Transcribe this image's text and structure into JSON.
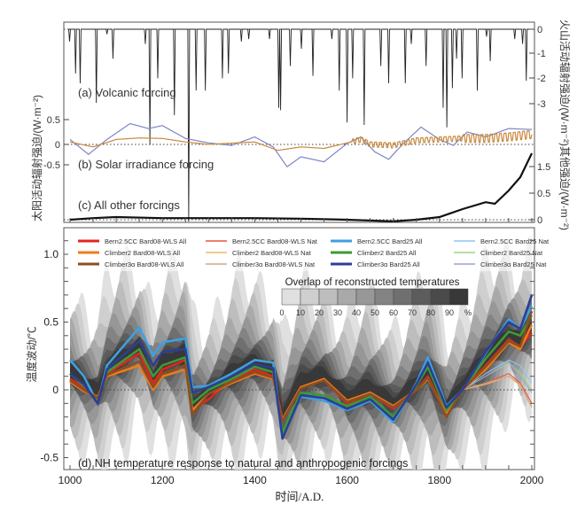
{
  "chart_data": [
    {
      "type": "line",
      "panel": "top",
      "labels": {
        "a": "(a) Volcanic forcing",
        "b": "(b) Solar irradiance forcing",
        "c": "(c) All other forcings"
      },
      "left_ylabel": "太阳活动辐射强迫/(W·m⁻²)",
      "right_ylabel_volcanic": "火山活动辐射强迫/(W·m⁻²)",
      "right_ylabel_other": "其他强迫/(W·m⁻²)",
      "solar_ticks": [
        "0.5",
        "0",
        "-0.5"
      ],
      "volcanic_ticks": [
        "0",
        "-1",
        "-2",
        "-3"
      ],
      "other_ticks": [
        "1.5",
        "0.5",
        "0"
      ],
      "xlim": [
        1000,
        2000
      ],
      "volcanic": [
        [
          999,
          -0.5
        ],
        [
          1012,
          -1.8
        ],
        [
          1022,
          -2.2
        ],
        [
          1057,
          -3.0
        ],
        [
          1080,
          -0.2
        ],
        [
          1093,
          -1.2
        ],
        [
          1163,
          -0.6
        ],
        [
          1173,
          -4.7
        ],
        [
          1190,
          -2.0
        ],
        [
          1226,
          -3.5
        ],
        [
          1257,
          -12
        ],
        [
          1273,
          -2.5
        ],
        [
          1293,
          -2.5
        ],
        [
          1330,
          -2.0
        ],
        [
          1343,
          -1.8
        ],
        [
          1371,
          -0.5
        ],
        [
          1387,
          -0.4
        ],
        [
          1432,
          -0.4
        ],
        [
          1452,
          -3.2
        ],
        [
          1456,
          -3.3
        ],
        [
          1477,
          -1.5
        ],
        [
          1501,
          -0.8
        ],
        [
          1526,
          -1.9
        ],
        [
          1567,
          -0.4
        ],
        [
          1583,
          -2.5
        ],
        [
          1600,
          -3.8
        ],
        [
          1612,
          -2.0
        ],
        [
          1637,
          -3.9
        ],
        [
          1673,
          -1.5
        ],
        [
          1690,
          -2.2
        ],
        [
          1726,
          -2.2
        ],
        [
          1739,
          -0.6
        ],
        [
          1771,
          -1.5
        ],
        [
          1808,
          -3.2
        ],
        [
          1816,
          -4.0
        ],
        [
          1828,
          -2.4
        ],
        [
          1837,
          -1.2
        ],
        [
          1849,
          -2.0
        ],
        [
          1882,
          -2.5
        ],
        [
          1902,
          -0.3
        ],
        [
          1910,
          -1.3
        ],
        [
          1963,
          -0.4
        ],
        [
          1980,
          -0.6
        ],
        [
          1988,
          -2.1
        ]
      ],
      "solar_series": [
        {
          "color": "#7b86c8",
          "points": [
            [
              1000,
              0.1
            ],
            [
              1040,
              -0.2
            ],
            [
              1080,
              0.1
            ],
            [
              1130,
              0.42
            ],
            [
              1170,
              0.32
            ],
            [
              1200,
              0.38
            ],
            [
              1250,
              0.12
            ],
            [
              1300,
              0.03
            ],
            [
              1350,
              -0.02
            ],
            [
              1400,
              0.15
            ],
            [
              1440,
              -0.05
            ],
            [
              1470,
              -0.45
            ],
            [
              1500,
              -0.25
            ],
            [
              1550,
              -0.35
            ],
            [
              1600,
              0.02
            ],
            [
              1630,
              0.15
            ],
            [
              1660,
              -0.15
            ],
            [
              1690,
              -0.3
            ],
            [
              1720,
              0.0
            ],
            [
              1760,
              0.35
            ],
            [
              1800,
              0.1
            ],
            [
              1830,
              -0.02
            ],
            [
              1860,
              0.25
            ],
            [
              1900,
              0.15
            ],
            [
              1950,
              0.32
            ],
            [
              2000,
              0.3
            ]
          ]
        },
        {
          "color": "#c8893c",
          "points": [
            [
              1000,
              0.05
            ],
            [
              1050,
              -0.05
            ],
            [
              1100,
              0.1
            ],
            [
              1150,
              0.13
            ],
            [
              1200,
              0.12
            ],
            [
              1250,
              0.05
            ],
            [
              1300,
              0.0
            ],
            [
              1400,
              0.05
            ],
            [
              1450,
              -0.12
            ],
            [
              1500,
              -0.05
            ],
            [
              1550,
              -0.08
            ],
            [
              1600,
              0.03
            ],
            [
              1630,
              0.1
            ],
            [
              1650,
              0.0
            ],
            [
              1700,
              -0.02
            ],
            [
              1750,
              0.08
            ],
            [
              1800,
              0.1
            ],
            [
              1850,
              0.12
            ],
            [
              1900,
              0.12
            ],
            [
              1950,
              0.15
            ],
            [
              2000,
              0.2
            ]
          ]
        }
      ],
      "other_forcings": [
        [
          1000,
          0
        ],
        [
          1050,
          0.03
        ],
        [
          1100,
          0.05
        ],
        [
          1200,
          0.03
        ],
        [
          1300,
          0.03
        ],
        [
          1400,
          0.03
        ],
        [
          1500,
          0.02
        ],
        [
          1600,
          0.0
        ],
        [
          1700,
          -0.03
        ],
        [
          1750,
          0.0
        ],
        [
          1800,
          0.05
        ],
        [
          1850,
          0.2
        ],
        [
          1900,
          0.33
        ],
        [
          1920,
          0.3
        ],
        [
          1950,
          0.55
        ],
        [
          1975,
          0.8
        ],
        [
          2000,
          1.25
        ]
      ]
    },
    {
      "type": "line",
      "panel": "bottom",
      "title": "(d) NH temperature response to natural and anthropogenic forcings",
      "xlabel": "时间/A.D.",
      "ylabel": "温度波动/℃",
      "xlim": [
        1000,
        2000
      ],
      "ylim": [
        -0.55,
        1.15
      ],
      "xticks": [
        "1000",
        "1200",
        "1400",
        "1600",
        "1800",
        "2000"
      ],
      "yticks": [
        "1.0",
        "0.5",
        "0",
        "-0.5"
      ],
      "overlap_legend": {
        "title": "Overlap of reconstructed temperatures",
        "labels": [
          "0",
          "10",
          "20",
          "30",
          "40",
          "50",
          "60",
          "70",
          "80",
          "90",
          "%"
        ],
        "colors": [
          "#e0e0e0",
          "#cfcfcf",
          "#bdbdbd",
          "#a9a9a9",
          "#979797",
          "#838383",
          "#6f6f6f",
          "#5c5c5c",
          "#4a4a4a",
          "#383838"
        ]
      },
      "x": [
        1000,
        1030,
        1060,
        1080,
        1150,
        1180,
        1200,
        1250,
        1265,
        1300,
        1350,
        1400,
        1440,
        1460,
        1500,
        1550,
        1600,
        1650,
        1700,
        1750,
        1775,
        1815,
        1850,
        1900,
        1950,
        1975,
        2000
      ],
      "series": [
        {
          "name": "Bern2.5CC Bard08-WLS All",
          "color": "#e3251f",
          "width": 2.6,
          "values": [
            0.08,
            0.02,
            -0.06,
            0.12,
            0.27,
            0.05,
            0.15,
            0.22,
            -0.15,
            -0.07,
            0.08,
            0.15,
            0.1,
            -0.22,
            0.02,
            0.07,
            -0.1,
            -0.03,
            -0.14,
            0.0,
            0.1,
            -0.18,
            0.0,
            0.18,
            0.37,
            0.32,
            0.42
          ]
        },
        {
          "name": "Bern2.5CC Bard08-WLS Nat",
          "color": "#e6553f",
          "width": 1.1,
          "values": [
            0.08,
            0.02,
            -0.06,
            0.12,
            0.27,
            0.05,
            0.15,
            0.22,
            -0.15,
            -0.07,
            0.08,
            0.15,
            0.1,
            -0.22,
            0.02,
            0.07,
            -0.1,
            -0.03,
            -0.14,
            0.0,
            0.1,
            -0.18,
            0.0,
            0.05,
            0.12,
            0.05,
            -0.1
          ]
        },
        {
          "name": "Bern2.5CC Bard25 All",
          "color": "#3fa0e0",
          "width": 2.6,
          "values": [
            0.22,
            0.1,
            -0.1,
            0.18,
            0.46,
            0.25,
            0.35,
            0.38,
            0.02,
            0.03,
            0.12,
            0.22,
            0.2,
            -0.35,
            -0.05,
            -0.08,
            -0.15,
            -0.08,
            -0.24,
            0.05,
            0.24,
            -0.12,
            0.0,
            0.27,
            0.52,
            0.45,
            0.62
          ]
        },
        {
          "name": "Bern2.5CC Bard25 Nat",
          "color": "#8cc8ee",
          "width": 1.1,
          "values": [
            0.22,
            0.1,
            -0.1,
            0.18,
            0.46,
            0.25,
            0.35,
            0.38,
            0.02,
            0.03,
            0.12,
            0.22,
            0.2,
            -0.35,
            -0.05,
            -0.08,
            -0.15,
            -0.08,
            -0.24,
            0.05,
            0.24,
            -0.12,
            0.0,
            0.12,
            0.22,
            0.18,
            0.05
          ]
        },
        {
          "name": "Climber2   Bard08-WLS All",
          "color": "#f07a1a",
          "width": 2.6,
          "values": [
            0.06,
            -0.01,
            -0.05,
            0.1,
            0.18,
            0.0,
            0.1,
            0.15,
            -0.15,
            -0.03,
            0.05,
            0.12,
            0.08,
            -0.22,
            0.02,
            0.08,
            -0.08,
            -0.02,
            -0.12,
            0.0,
            0.08,
            -0.18,
            0.0,
            0.15,
            0.35,
            0.3,
            0.48
          ]
        },
        {
          "name": "Climber2   Bard08-WLS Nat",
          "color": "#f7b560",
          "width": 1.1,
          "values": [
            0.06,
            -0.01,
            -0.05,
            0.1,
            0.18,
            0.0,
            0.1,
            0.15,
            -0.15,
            -0.03,
            0.05,
            0.12,
            0.08,
            -0.22,
            0.02,
            0.08,
            -0.08,
            -0.02,
            -0.12,
            0.0,
            0.08,
            -0.18,
            0.0,
            0.04,
            0.1,
            0.03,
            -0.12
          ]
        },
        {
          "name": "Climber2   Bard25 All",
          "color": "#3d9a35",
          "width": 2.6,
          "values": [
            0.12,
            0.03,
            -0.08,
            0.13,
            0.3,
            0.1,
            0.18,
            0.24,
            -0.1,
            0.0,
            0.08,
            0.17,
            0.13,
            -0.32,
            -0.02,
            -0.04,
            -0.12,
            -0.05,
            -0.2,
            0.03,
            0.17,
            -0.15,
            0.0,
            0.23,
            0.43,
            0.4,
            0.55
          ]
        },
        {
          "name": "Climber2   Bard25 Nat",
          "color": "#9fd27d",
          "width": 1.1,
          "values": [
            0.12,
            0.03,
            -0.08,
            0.13,
            0.3,
            0.1,
            0.18,
            0.24,
            -0.1,
            0.0,
            0.08,
            0.17,
            0.13,
            -0.32,
            -0.02,
            -0.04,
            -0.12,
            -0.05,
            -0.2,
            0.03,
            0.17,
            -0.15,
            0.0,
            0.1,
            0.2,
            0.12,
            0.0
          ]
        },
        {
          "name": "Climber3α Bard08-WLS All",
          "color": "#8a4f22",
          "width": 2.6,
          "values": [
            0.07,
            0.0,
            -0.06,
            0.11,
            0.21,
            0.02,
            0.12,
            0.18,
            -0.18,
            -0.03,
            0.06,
            0.13,
            0.09,
            -0.23,
            0.01,
            0.07,
            -0.09,
            -0.03,
            -0.13,
            0.0,
            0.09,
            -0.2,
            0.0,
            0.17,
            0.36,
            0.32,
            0.58
          ]
        },
        {
          "name": "Climber3α Bard08-WLS Nat",
          "color": "#d0a585",
          "width": 1.1,
          "values": [
            0.07,
            0.0,
            -0.06,
            0.11,
            0.21,
            0.02,
            0.12,
            0.18,
            -0.18,
            -0.03,
            0.06,
            0.13,
            0.09,
            -0.23,
            0.01,
            0.07,
            -0.09,
            -0.03,
            -0.13,
            0.0,
            0.09,
            -0.2,
            0.0,
            0.05,
            0.1,
            0.04,
            -0.13
          ]
        },
        {
          "name": "Climber3α Bard25 All",
          "color": "#2b3f93",
          "width": 2.6,
          "values": [
            0.12,
            0.04,
            -0.1,
            0.15,
            0.36,
            0.18,
            0.28,
            0.3,
            -0.02,
            0.02,
            0.1,
            0.19,
            0.16,
            -0.36,
            -0.04,
            -0.06,
            -0.14,
            -0.07,
            -0.22,
            0.04,
            0.2,
            -0.13,
            0.0,
            0.28,
            0.5,
            0.45,
            0.7
          ]
        },
        {
          "name": "Climber3α Bard25 Nat",
          "color": "#9aa3d3",
          "width": 1.1,
          "values": [
            0.12,
            0.04,
            -0.1,
            0.15,
            0.36,
            0.18,
            0.28,
            0.3,
            -0.02,
            0.02,
            0.1,
            0.19,
            0.16,
            -0.36,
            -0.04,
            -0.06,
            -0.14,
            -0.07,
            -0.22,
            0.04,
            0.2,
            -0.13,
            0.0,
            0.1,
            0.21,
            0.1,
            -0.02
          ]
        }
      ]
    }
  ]
}
